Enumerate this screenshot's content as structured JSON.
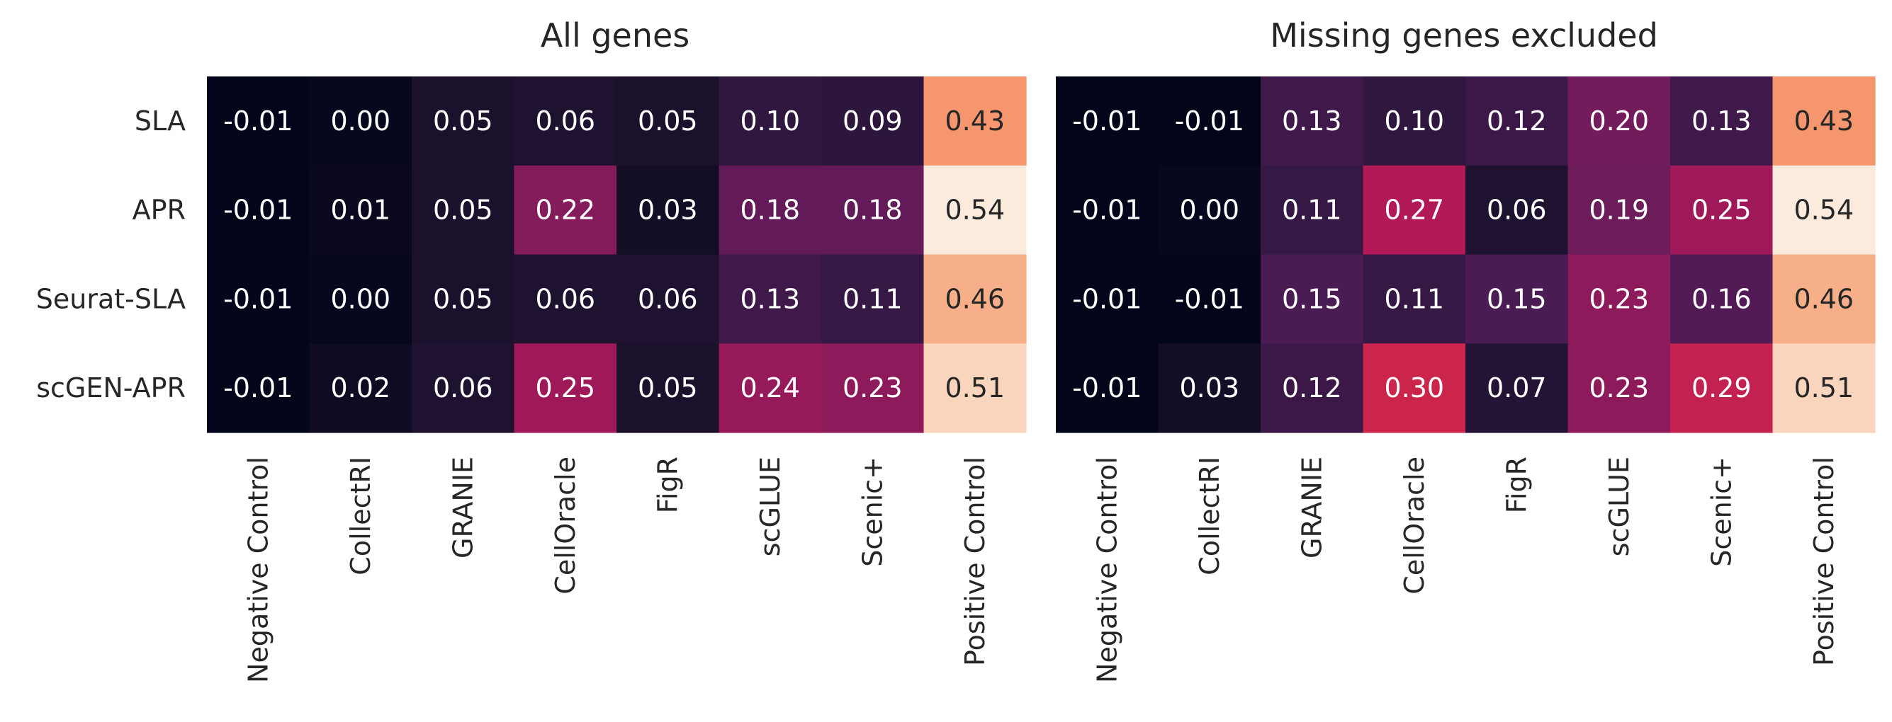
{
  "chart_data": [
    {
      "type": "heatmap",
      "title": "All genes",
      "rows": [
        "SLA",
        "APR",
        "Seurat-SLA",
        "scGEN-APR"
      ],
      "columns": [
        "Negative Control",
        "CollectRI",
        "GRANIE",
        "CellOracle",
        "FigR",
        "scGLUE",
        "Scenic+",
        "Positive Control"
      ],
      "values": [
        [
          -0.01,
          0.0,
          0.05,
          0.06,
          0.05,
          0.1,
          0.09,
          0.43
        ],
        [
          -0.01,
          0.01,
          0.05,
          0.22,
          0.03,
          0.18,
          0.18,
          0.54
        ],
        [
          -0.01,
          0.0,
          0.05,
          0.06,
          0.06,
          0.13,
          0.11,
          0.46
        ],
        [
          -0.01,
          0.02,
          0.06,
          0.25,
          0.05,
          0.24,
          0.23,
          0.51
        ]
      ],
      "value_labels": [
        [
          "-0.01",
          "0.00",
          "0.05",
          "0.06",
          "0.05",
          "0.10",
          "0.09",
          "0.43"
        ],
        [
          "-0.01",
          "0.01",
          "0.05",
          "0.22",
          "0.03",
          "0.18",
          "0.18",
          "0.54"
        ],
        [
          "-0.01",
          "0.00",
          "0.05",
          "0.06",
          "0.06",
          "0.13",
          "0.11",
          "0.46"
        ],
        [
          "-0.01",
          "0.02",
          "0.06",
          "0.25",
          "0.05",
          "0.24",
          "0.23",
          "0.51"
        ]
      ],
      "colormap": "rocket",
      "color_range": [
        -0.01,
        0.54
      ]
    },
    {
      "type": "heatmap",
      "title": "Missing genes excluded",
      "rows": [
        "SLA",
        "APR",
        "Seurat-SLA",
        "scGEN-APR"
      ],
      "columns": [
        "Negative Control",
        "CollectRI",
        "GRANIE",
        "CellOracle",
        "FigR",
        "scGLUE",
        "Scenic+",
        "Positive Control"
      ],
      "values": [
        [
          -0.01,
          -0.01,
          0.13,
          0.1,
          0.12,
          0.2,
          0.13,
          0.43
        ],
        [
          -0.01,
          0.0,
          0.11,
          0.27,
          0.06,
          0.19,
          0.25,
          0.54
        ],
        [
          -0.01,
          -0.01,
          0.15,
          0.11,
          0.15,
          0.23,
          0.16,
          0.46
        ],
        [
          -0.01,
          0.03,
          0.12,
          0.3,
          0.07,
          0.23,
          0.29,
          0.51
        ]
      ],
      "value_labels": [
        [
          "-0.01",
          "-0.01",
          "0.13",
          "0.10",
          "0.12",
          "0.20",
          "0.13",
          "0.43"
        ],
        [
          "-0.01",
          "0.00",
          "0.11",
          "0.27",
          "0.06",
          "0.19",
          "0.25",
          "0.54"
        ],
        [
          "-0.01",
          "-0.01",
          "0.15",
          "0.11",
          "0.15",
          "0.23",
          "0.16",
          "0.46"
        ],
        [
          "-0.01",
          "0.03",
          "0.12",
          "0.30",
          "0.07",
          "0.23",
          "0.29",
          "0.51"
        ]
      ],
      "colormap": "rocket",
      "color_range": [
        -0.01,
        0.54
      ]
    }
  ]
}
